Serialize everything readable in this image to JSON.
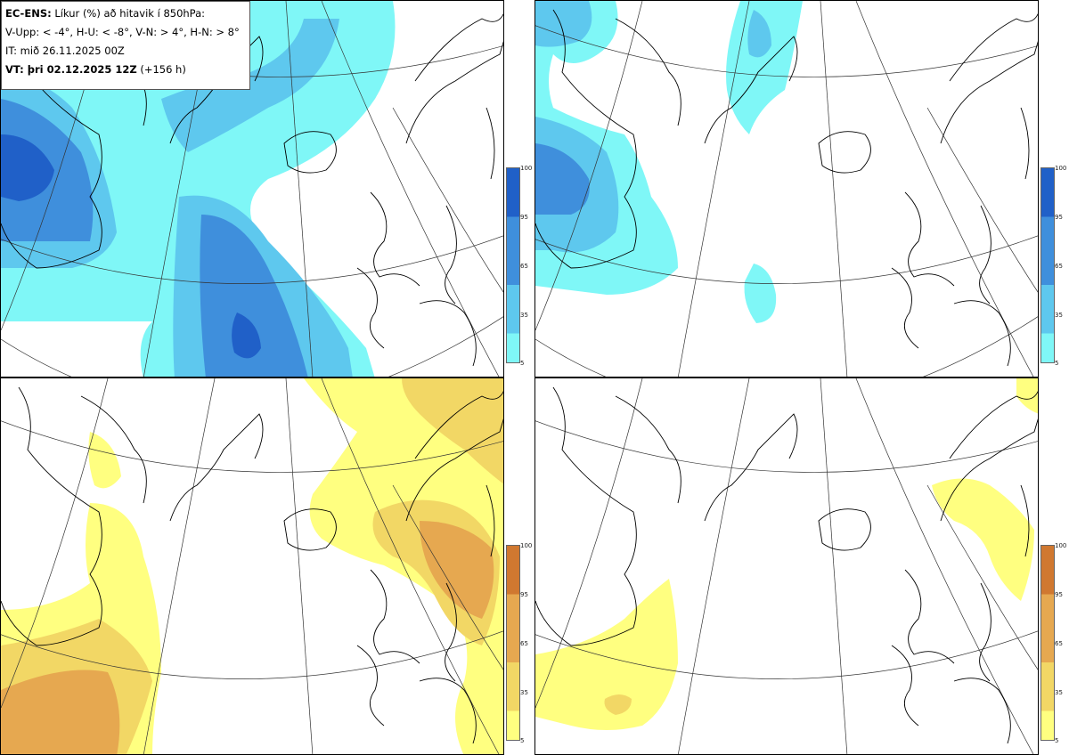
{
  "info": {
    "model": "EC-ENS:",
    "title": "Líkur (%) að hitavik í 850hPa:",
    "thresholds": "V-Upp: < -4°, H-U: < -8°, V-N: > 4°, H-N: > 8°",
    "init_time": "IT: mið 26.11.2025 00Z",
    "valid_label": "VT: þri 02.12.2025 12Z",
    "lead_time": "(+156 h)"
  },
  "panels": [
    {
      "name": "V-Upp",
      "description": "cold anomaly < -4°",
      "scheme": "cold"
    },
    {
      "name": "H-U",
      "description": "cold anomaly < -8°",
      "scheme": "cold"
    },
    {
      "name": "V-N",
      "description": "warm anomaly > 4°",
      "scheme": "warm"
    },
    {
      "name": "H-N",
      "description": "warm anomaly > 8°",
      "scheme": "warm"
    }
  ],
  "colorbar": {
    "ticks": [
      "100",
      "95",
      "65",
      "35",
      "5"
    ],
    "cold_colors": [
      "#2060c8",
      "#3f8fdc",
      "#5ec8ee",
      "#7ff7f7"
    ],
    "warm_colors": [
      "#d07830",
      "#e6a850",
      "#f2d765",
      "#ffff80"
    ]
  }
}
